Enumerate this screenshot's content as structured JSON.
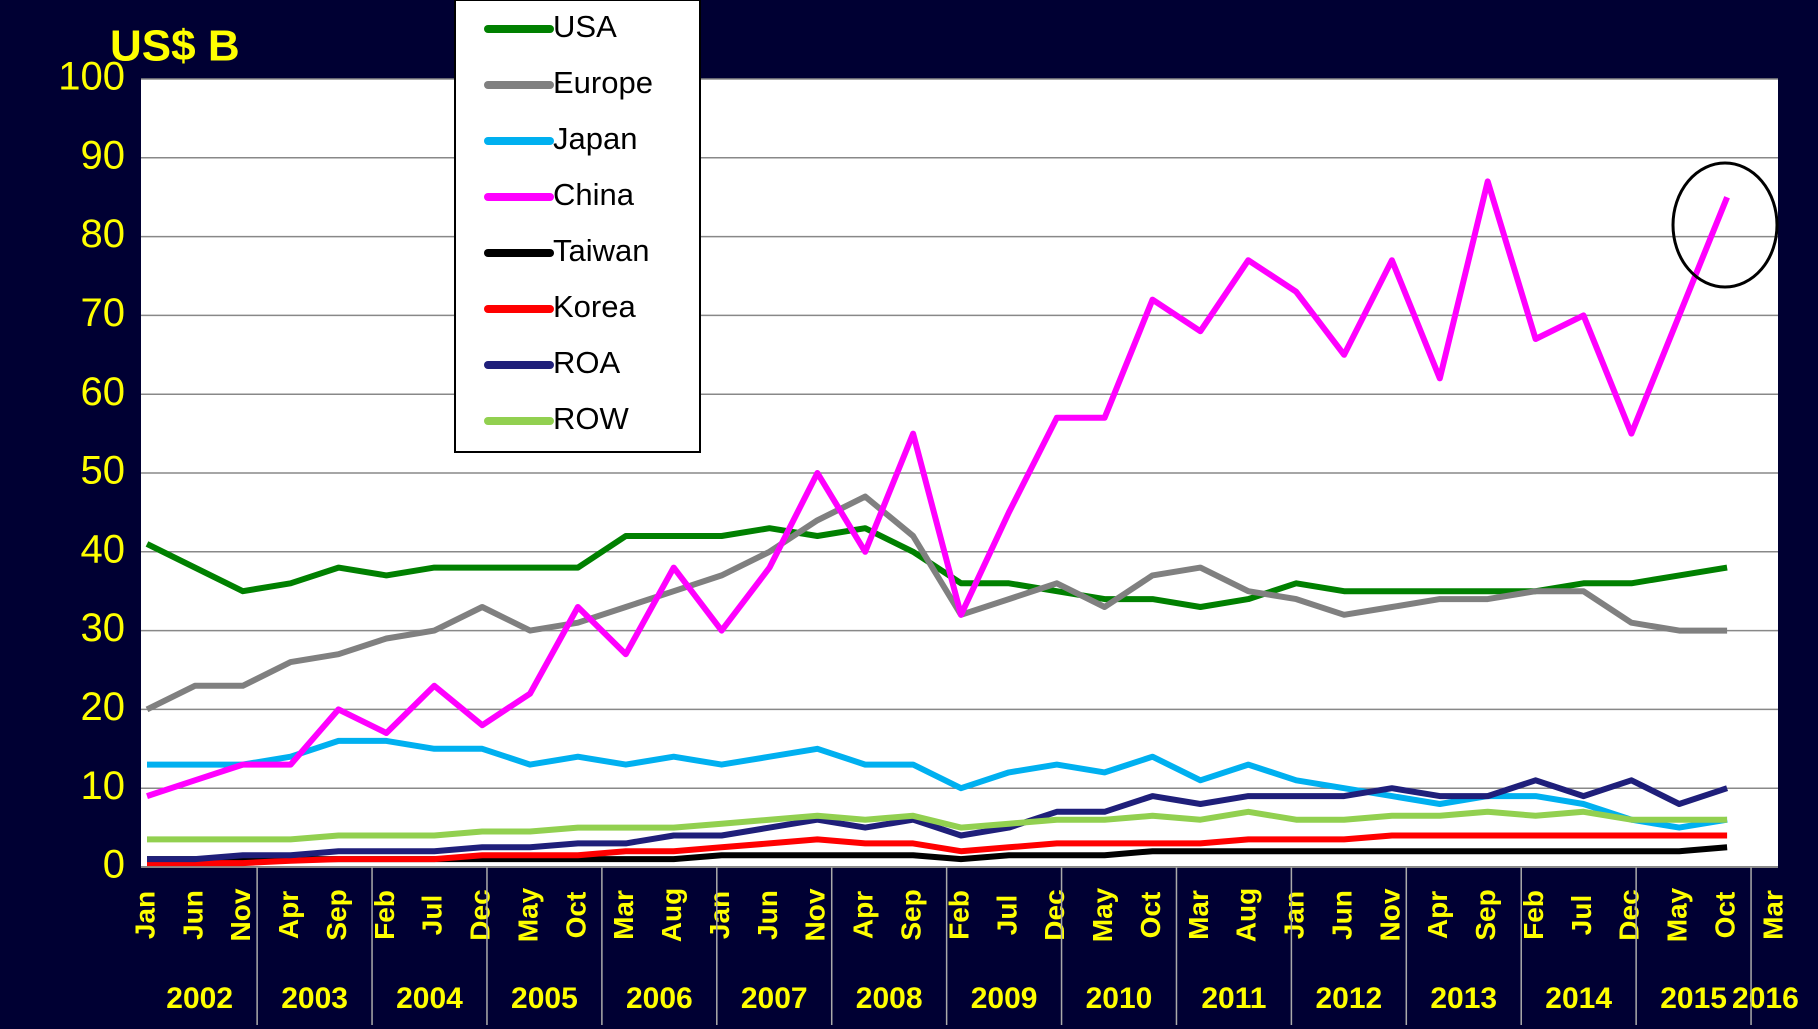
{
  "chart_data": {
    "type": "line",
    "title": "US$ B",
    "categories": [
      "Jan",
      "Jun",
      "Nov",
      "Apr",
      "Sep",
      "Feb",
      "Jul",
      "Dec",
      "May",
      "Oct",
      "Mar",
      "Aug",
      "Jan",
      "Jun",
      "Nov",
      "Apr",
      "Sep",
      "Feb",
      "Jul",
      "Dec",
      "May",
      "Oct",
      "Mar",
      "Aug",
      "Jan",
      "Jun",
      "Nov",
      "Apr",
      "Sep",
      "Feb",
      "Jul",
      "Dec",
      "May",
      "Oct",
      "Mar"
    ],
    "years": [
      "2002",
      "2003",
      "2004",
      "2005",
      "2006",
      "2007",
      "2008",
      "2009",
      "2010",
      "2011",
      "2012",
      "2013",
      "2014",
      "2015",
      "2016"
    ],
    "ylim": [
      0,
      100
    ],
    "yticks": [
      0,
      10,
      20,
      30,
      40,
      50,
      60,
      70,
      80,
      90,
      100
    ],
    "grid": true,
    "series": [
      {
        "name": "USA",
        "color": "#008000",
        "values": [
          41,
          38,
          35,
          36,
          38,
          37,
          38,
          38,
          38,
          38,
          42,
          42,
          42,
          43,
          42,
          43,
          40,
          36,
          36,
          35,
          34,
          34,
          33,
          34,
          36,
          35,
          35,
          35,
          35,
          35,
          36,
          36,
          37,
          38,
          null
        ]
      },
      {
        "name": "Europe",
        "color": "#808080",
        "values": [
          20,
          23,
          23,
          26,
          27,
          29,
          30,
          33,
          30,
          31,
          33,
          35,
          37,
          40,
          44,
          47,
          42,
          32,
          34,
          36,
          33,
          37,
          38,
          35,
          34,
          32,
          33,
          34,
          34,
          35,
          35,
          31,
          30,
          30,
          null
        ]
      },
      {
        "name": "Japan",
        "color": "#00b0f0",
        "values": [
          13,
          13,
          13,
          14,
          16,
          16,
          15,
          15,
          13,
          14,
          13,
          14,
          13,
          14,
          15,
          13,
          13,
          10,
          12,
          13,
          12,
          14,
          11,
          13,
          11,
          10,
          9,
          8,
          9,
          9,
          8,
          6,
          5,
          6,
          null
        ]
      },
      {
        "name": "China",
        "color": "#ff00ff",
        "values": [
          9,
          11,
          13,
          13,
          20,
          17,
          23,
          18,
          22,
          33,
          27,
          38,
          30,
          38,
          50,
          40,
          55,
          32,
          45,
          57,
          57,
          72,
          68,
          77,
          73,
          65,
          77,
          62,
          87,
          67,
          70,
          55,
          70,
          85,
          null
        ]
      },
      {
        "name": "Taiwan",
        "color": "#000000",
        "values": [
          1,
          1,
          1,
          1,
          1,
          1,
          1,
          1,
          1,
          1,
          1,
          1,
          1.5,
          1.5,
          1.5,
          1.5,
          1.5,
          1,
          1.5,
          1.5,
          1.5,
          2,
          2,
          2,
          2,
          2,
          2,
          2,
          2,
          2,
          2,
          2,
          2,
          2.5,
          null
        ]
      },
      {
        "name": "Korea",
        "color": "#ff0000",
        "values": [
          0.5,
          0.5,
          0.5,
          0.8,
          1,
          1,
          1,
          1.5,
          1.5,
          1.5,
          2,
          2,
          2.5,
          3,
          3.5,
          3,
          3,
          2,
          2.5,
          3,
          3,
          3,
          3,
          3.5,
          3.5,
          3.5,
          4,
          4,
          4,
          4,
          4,
          4,
          4,
          4,
          null
        ]
      },
      {
        "name": "ROA",
        "color": "#1f1f7a",
        "values": [
          1,
          1,
          1.5,
          1.5,
          2,
          2,
          2,
          2.5,
          2.5,
          3,
          3,
          4,
          4,
          5,
          6,
          5,
          6,
          4,
          5,
          7,
          7,
          9,
          8,
          9,
          9,
          9,
          10,
          9,
          9,
          11,
          9,
          11,
          8,
          10,
          null
        ]
      },
      {
        "name": "ROW",
        "color": "#92d050",
        "values": [
          3.5,
          3.5,
          3.5,
          3.5,
          4,
          4,
          4,
          4.5,
          4.5,
          5,
          5,
          5,
          5.5,
          6,
          6.5,
          6,
          6.5,
          5,
          5.5,
          6,
          6,
          6.5,
          6,
          7,
          6,
          6,
          6.5,
          6.5,
          7,
          6.5,
          7,
          6,
          6,
          6,
          null
        ]
      }
    ]
  }
}
